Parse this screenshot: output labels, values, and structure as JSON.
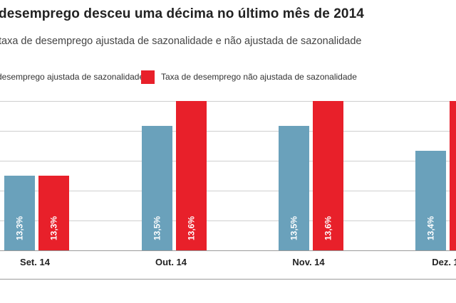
{
  "header": {
    "title": "desemprego desceu uma décima no último mês de 2014",
    "subtitle": "taxa de desemprego ajustada de sazonalidade e não ajustada de sazonalidade"
  },
  "colors": {
    "seasonal": "#6aa1bb",
    "nonseasonal": "#e8202a"
  },
  "chart_data": {
    "type": "bar",
    "categories": [
      "Set. 14",
      "Out. 14",
      "Nov. 14",
      "Dez. 1"
    ],
    "series": [
      {
        "name": "desemprego ajustada de sazonalidade",
        "values": [
          13.3,
          13.5,
          13.5,
          13.4
        ],
        "labels": [
          "13,3%",
          "13,5%",
          "13,5%",
          "13,4%"
        ]
      },
      {
        "name": "Taxa de desemprego não ajustada de sazonalidade",
        "values": [
          13.3,
          13.6,
          13.6,
          13.6
        ],
        "labels": [
          "13,3%",
          "13,6%",
          "13,6%",
          ""
        ]
      }
    ],
    "grid": true
  }
}
